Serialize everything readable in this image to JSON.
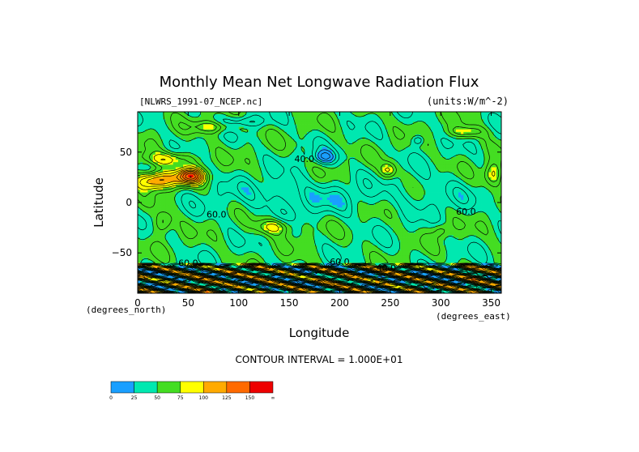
{
  "chart_data": {
    "type": "heatmap",
    "title": "Monthly Mean Net Longwave Radiation Flux",
    "file_label": "[NLWRS_1991-07_NCEP.nc]",
    "units_label": "(units:W/m^-2)",
    "xlabel": "Longitude",
    "ylabel": "Latitude",
    "x_unit_label": "(degrees_east)",
    "y_unit_label": "(degrees_north)",
    "xlim": [
      0,
      360
    ],
    "ylim": [
      -90,
      90
    ],
    "x_ticks": [
      0,
      50,
      100,
      150,
      200,
      250,
      300,
      350
    ],
    "x_tick_labels": [
      "0",
      "50",
      "100",
      "150",
      "200",
      "250",
      "300",
      "350"
    ],
    "y_ticks": [
      50,
      0,
      -50
    ],
    "y_tick_labels": [
      "50",
      "0",
      "−50"
    ],
    "contour_interval_text": "CONTOUR INTERVAL = 1.000E+01",
    "contour_labels": [
      {
        "lon": 78,
        "lat": -15,
        "text": "60.0"
      },
      {
        "lon": 165,
        "lat": 40,
        "text": "40.0"
      },
      {
        "lon": 325,
        "lat": -12,
        "text": "60.0"
      },
      {
        "lon": 50,
        "lat": -63,
        "text": "60.0"
      },
      {
        "lon": 200,
        "lat": -62,
        "text": "60.0"
      },
      {
        "lon": 246,
        "lat": -68,
        "text": "40.0"
      }
    ],
    "colorbar": {
      "boundaries": [
        "0",
        "25",
        "50",
        "75",
        "100",
        "125",
        "150",
        "∞"
      ],
      "colors": [
        "#1a9fff",
        "#00e8b0",
        "#44dd22",
        "#ffff00",
        "#ffaa00",
        "#ff6a00",
        "#ee0000"
      ]
    }
  }
}
